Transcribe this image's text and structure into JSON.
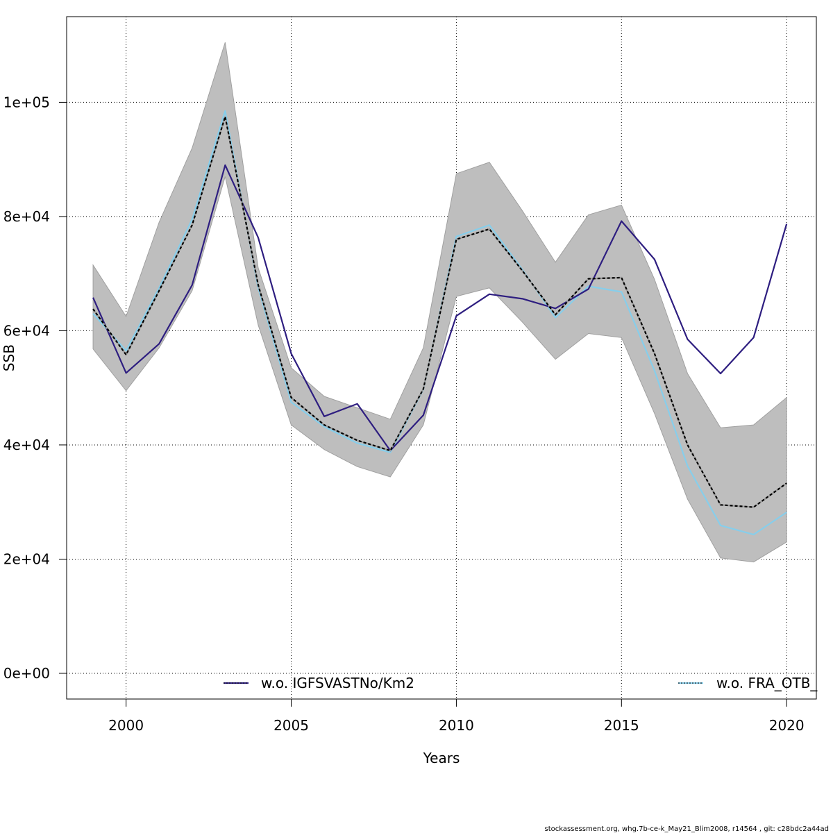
{
  "chart_data": {
    "type": "line",
    "xlabel": "Years",
    "ylabel": "SSB",
    "xlim": [
      1998.2,
      2020.9
    ],
    "ylim": [
      -4500,
      115000
    ],
    "x_ticks": [
      2000,
      2005,
      2010,
      2015,
      2020
    ],
    "x_tick_labels": [
      "2000",
      "2005",
      "2010",
      "2015",
      "2020"
    ],
    "y_ticks": [
      0,
      20000,
      40000,
      60000,
      80000,
      100000
    ],
    "y_tick_labels": [
      "0e+00",
      "2e+04",
      "4e+04",
      "6e+04",
      "8e+04",
      "1e+05"
    ],
    "grid": true,
    "x": [
      1999,
      2000,
      2001,
      2002,
      2003,
      2004,
      2005,
      2006,
      2007,
      2008,
      2009,
      2010,
      2011,
      2012,
      2013,
      2014,
      2015,
      2016,
      2017,
      2018,
      2019,
      2020
    ],
    "band": {
      "upper": [
        71500,
        62500,
        79000,
        92000,
        110500,
        71000,
        53500,
        48500,
        46500,
        44500,
        57000,
        87500,
        89500,
        81000,
        72000,
        80300,
        82000,
        69000,
        52500,
        43000,
        43500,
        48300
      ],
      "lower": [
        56800,
        49500,
        57000,
        67000,
        87000,
        61000,
        43500,
        39200,
        36200,
        34400,
        43500,
        66000,
        67500,
        61500,
        55000,
        59500,
        58800,
        45500,
        30500,
        20200,
        19500,
        23000
      ],
      "color": "#bebebe"
    },
    "series": [
      {
        "name": "",
        "color": "#000000",
        "dash": "4,3",
        "values": [
          63800,
          55800,
          67000,
          78500,
          97500,
          68000,
          48300,
          43500,
          40800,
          39000,
          49800,
          76000,
          77800,
          70500,
          62800,
          69100,
          69300,
          56000,
          40000,
          29500,
          29100,
          33300
        ]
      },
      {
        "name": "w.o. IGFSVASTNo/Km2",
        "color": "#2e1e80",
        "dash": "",
        "values": [
          65800,
          52600,
          57700,
          68000,
          89000,
          76300,
          56000,
          45000,
          47200,
          39000,
          45200,
          62600,
          66400,
          65600,
          63900,
          67300,
          79200,
          72500,
          58500,
          52500,
          58800,
          78700
        ]
      },
      {
        "name": "w.o. FRA_OTB_",
        "color": "#87ceeb",
        "dash": "",
        "values": [
          63000,
          56500,
          67500,
          79500,
          98500,
          67500,
          47500,
          43200,
          40300,
          38700,
          49700,
          76500,
          78500,
          70700,
          62300,
          67800,
          66800,
          53000,
          36300,
          25900,
          24300,
          28200
        ]
      }
    ],
    "legend": [
      {
        "label": "w.o. IGFSVASTNo/Km2",
        "line_color": "#2e1e80",
        "dash": "",
        "inner_dash": "#000000"
      },
      {
        "label": "w.o. FRA_OTB_",
        "line_color": "#87ceeb",
        "dash": "",
        "inner_dash": "#000000"
      }
    ]
  },
  "footer": "stockassessment.org, whg.7b-ce-k_May21_Blim2008, r14564 , git: c28bdc2a44ad"
}
